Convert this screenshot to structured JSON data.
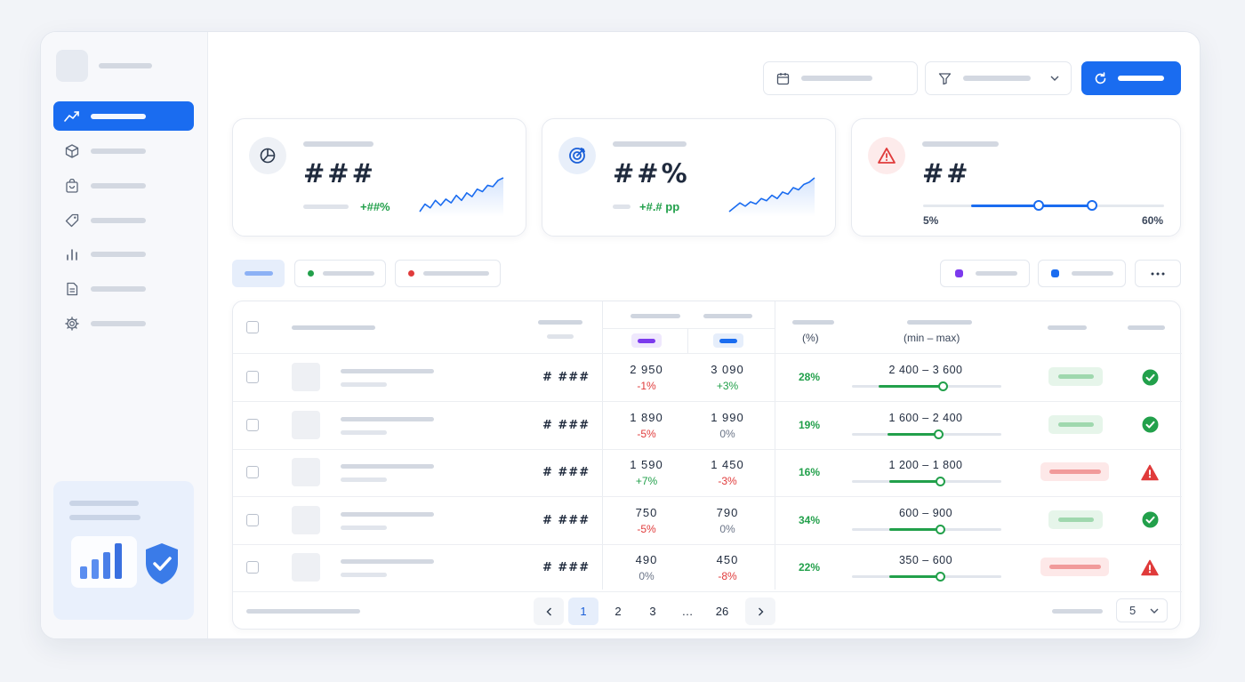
{
  "kpis": [
    {
      "value": "###",
      "delta": "+##%",
      "icon": "pie-chart-icon",
      "spark": [
        6,
        12,
        9,
        15,
        11,
        16,
        13,
        19,
        15,
        21,
        18,
        24,
        22,
        27,
        26,
        31,
        33
      ]
    },
    {
      "value": "##%",
      "delta": "+#.# pp",
      "icon": "target-icon",
      "spark": [
        5,
        9,
        13,
        10,
        14,
        12,
        17,
        15,
        20,
        17,
        23,
        21,
        27,
        25,
        30,
        32,
        36
      ]
    },
    {
      "value": "##",
      "icon": "alert-triangle-icon",
      "range_min_label": "5%",
      "range_max_label": "60%",
      "range_low": 0.48,
      "range_high": 0.7
    }
  ],
  "table": {
    "header": {
      "share_unit": "(%)",
      "range_unit": "(min – max)"
    },
    "rows": [
      {
        "id": "# ###",
        "a": "2 950",
        "a_chg": "-1%",
        "a_dir": "down",
        "b": "3 090",
        "b_chg": "+3%",
        "b_dir": "up",
        "share": "28%",
        "range": "2 400 – 3 600",
        "fill": 0.61,
        "status": "ok"
      },
      {
        "id": "# ###",
        "a": "1 890",
        "a_chg": "-5%",
        "a_dir": "down",
        "b": "1 990",
        "b_chg": "0%",
        "b_dir": "flat",
        "share": "19%",
        "range": "1 600 – 2 400",
        "fill": 0.58,
        "status": "ok"
      },
      {
        "id": "# ###",
        "a": "1 590",
        "a_chg": "+7%",
        "a_dir": "up",
        "b": "1 450",
        "b_chg": "-3%",
        "b_dir": "down",
        "share": "16%",
        "range": "1 200 – 1 800",
        "fill": 0.59,
        "status": "warn"
      },
      {
        "id": "# ###",
        "a": "750",
        "a_chg": "-5%",
        "a_dir": "down",
        "b": "790",
        "b_chg": "0%",
        "b_dir": "flat",
        "share": "34%",
        "range": "600 – 900",
        "fill": 0.59,
        "status": "ok"
      },
      {
        "id": "# ###",
        "a": "490",
        "a_chg": "0%",
        "a_dir": "flat",
        "b": "450",
        "b_chg": "-8%",
        "b_dir": "down",
        "share": "22%",
        "range": "350 – 600",
        "fill": 0.59,
        "status": "warn"
      }
    ]
  },
  "pagination": {
    "pages": [
      "1",
      "2",
      "3",
      "…",
      "26"
    ],
    "current": "1",
    "per_page": "5"
  },
  "colors": {
    "accent": "#1a6cf0",
    "positive": "#22a04b",
    "negative": "#e03b3b",
    "series_a": "#7c3aed",
    "series_b": "#1a6cf0"
  }
}
